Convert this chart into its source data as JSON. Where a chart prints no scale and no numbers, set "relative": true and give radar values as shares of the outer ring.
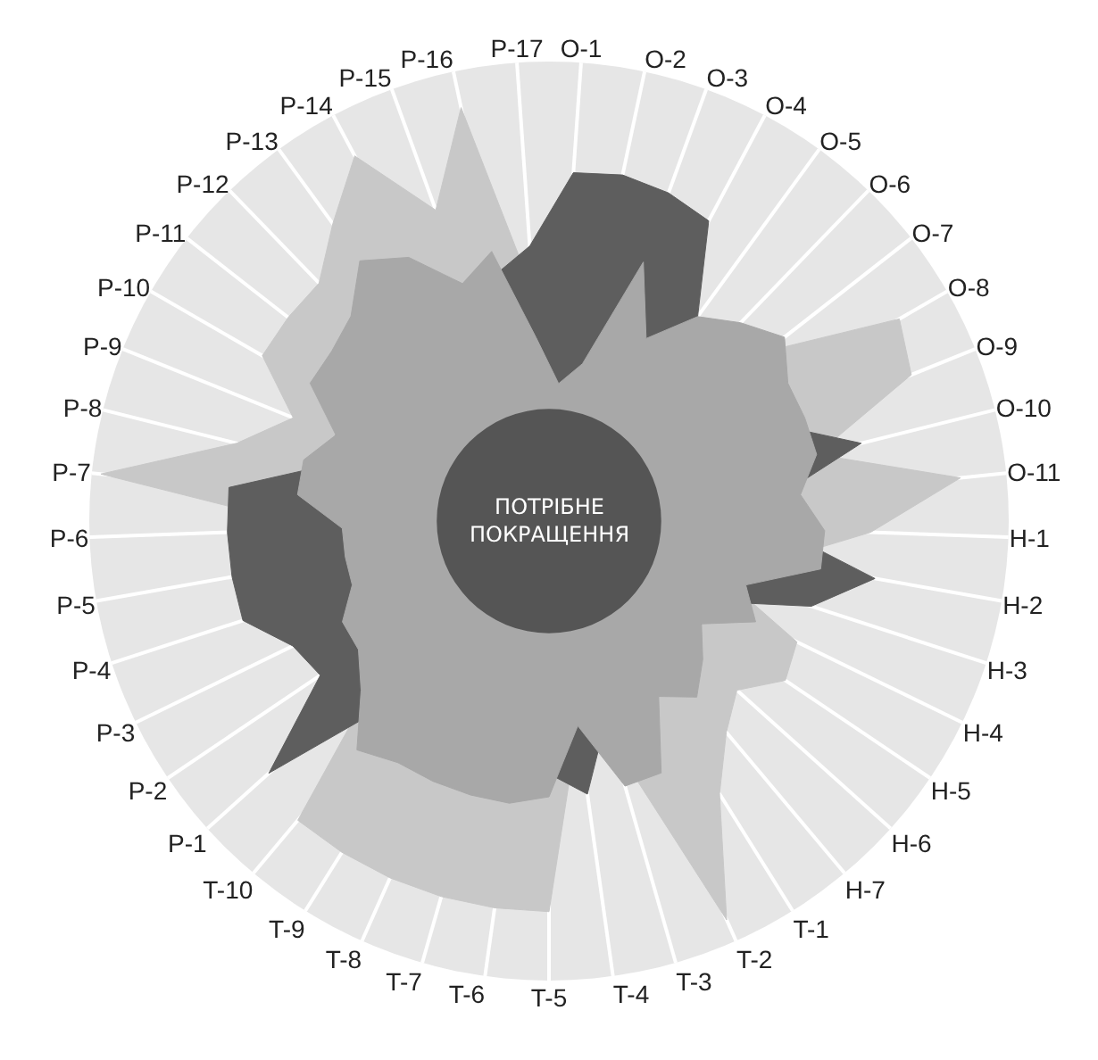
{
  "chart_data": {
    "type": "radar",
    "relative": true,
    "categories": [
      "O-1",
      "O-2",
      "O-3",
      "O-4",
      "O-5",
      "O-6",
      "O-7",
      "O-8",
      "O-9",
      "O-10",
      "O-11",
      "H-1",
      "H-2",
      "H-3",
      "H-4",
      "H-5",
      "H-6",
      "H-7",
      "T-1",
      "T-2",
      "T-3",
      "T-4",
      "T-5",
      "T-6",
      "T-7",
      "T-8",
      "T-9",
      "T-10",
      "P-1",
      "P-2",
      "P-3",
      "P-4",
      "P-5",
      "P-6",
      "P-7",
      "P-8",
      "P-9",
      "P-10",
      "P-11",
      "P-12",
      "P-13",
      "P-14",
      "P-15",
      "P-16",
      "P-17"
    ],
    "series": [
      {
        "color": "#c8c8c8",
        "values": [
          0.4,
          0.3,
          0.4,
          0.4,
          0.45,
          0.5,
          0.6,
          0.88,
          0.85,
          0.6,
          0.9,
          0.7,
          0.5,
          0.4,
          0.6,
          0.62,
          0.55,
          0.6,
          0.7,
          0.95,
          0.5,
          0.45,
          0.85,
          0.85,
          0.85,
          0.85,
          0.85,
          0.85,
          0.5,
          0.5,
          0.45,
          0.45,
          0.45,
          0.5,
          0.98,
          0.7,
          0.6,
          0.72,
          0.72,
          0.72,
          0.8,
          0.9,
          0.72,
          0.92,
          0.5
        ]
      },
      {
        "color": "#5e5e5e",
        "values": [
          0.76,
          0.77,
          0.76,
          0.74,
          0.55,
          0.5,
          0.5,
          0.5,
          0.55,
          0.7,
          0.5,
          0.5,
          0.72,
          0.6,
          0.4,
          0.4,
          0.4,
          0.4,
          0.4,
          0.4,
          0.45,
          0.6,
          0.55,
          0.5,
          0.5,
          0.5,
          0.5,
          0.5,
          0.82,
          0.6,
          0.62,
          0.7,
          0.7,
          0.7,
          0.7,
          0.5,
          0.5,
          0.5,
          0.5,
          0.5,
          0.5,
          0.5,
          0.5,
          0.55,
          0.6
        ]
      },
      {
        "color": "#a8a8a8",
        "values": [
          0.3,
          0.35,
          0.6,
          0.45,
          0.55,
          0.6,
          0.65,
          0.6,
          0.6,
          0.6,
          0.55,
          0.6,
          0.6,
          0.45,
          0.5,
          0.4,
          0.45,
          0.5,
          0.45,
          0.6,
          0.6,
          0.45,
          0.6,
          0.62,
          0.62,
          0.62,
          0.62,
          0.65,
          0.55,
          0.5,
          0.5,
          0.45,
          0.45,
          0.45,
          0.55,
          0.55,
          0.5,
          0.6,
          0.6,
          0.62,
          0.7,
          0.65,
          0.55,
          0.6,
          0.4
        ]
      }
    ],
    "annotations": [
      "ПОТРІБНЕ\nПОКРАЩЕННЯ"
    ]
  }
}
